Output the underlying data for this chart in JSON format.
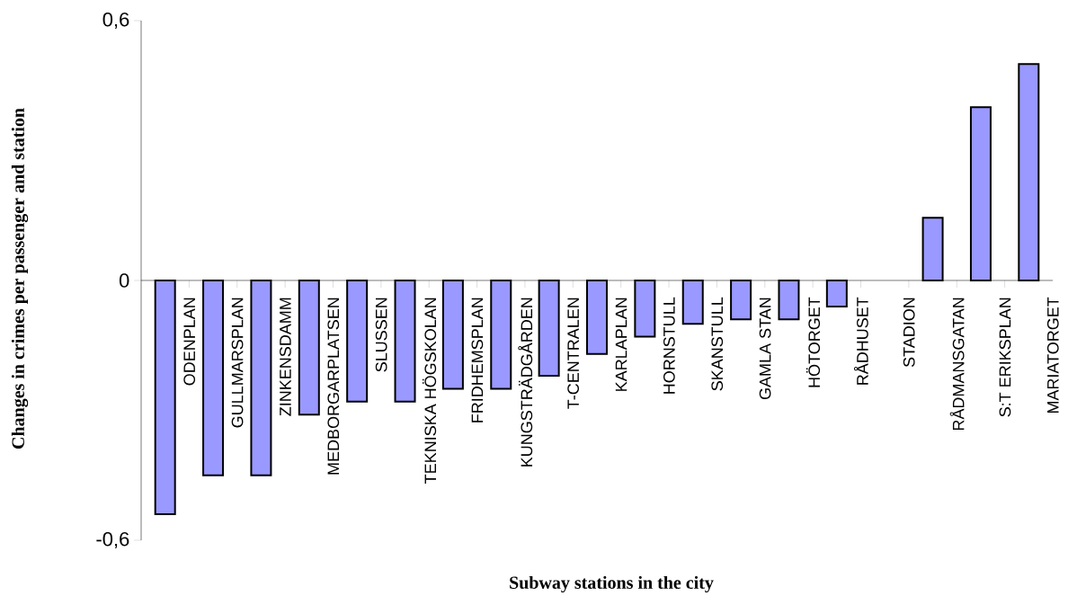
{
  "chart_data": {
    "type": "bar",
    "xlabel": "Subway stations in the city",
    "ylabel": "Changes in crimes per passenger and station",
    "categories": [
      "ODENPLAN",
      "GULLMARSPLAN",
      "ZINKENSDAMM",
      "MEDBORGARPLATSEN",
      "SLUSSEN",
      "TEKNISKA HÖGSKOLAN",
      "FRIDHEMSPLAN",
      "KUNGSTRÄDGÅRDEN",
      "T-CENTRALEN",
      "KARLAPLAN",
      "HORNSTULL",
      "SKANSTULL",
      "GAMLA STAN",
      "HÖTORGET",
      "RÅDHUSET",
      "STADION",
      "RÅDMANSGATAN",
      "S:T ERIKSPLAN",
      "MARIATORGET"
    ],
    "values": [
      -0.54,
      -0.45,
      -0.45,
      -0.31,
      -0.28,
      -0.28,
      -0.25,
      -0.25,
      -0.22,
      -0.17,
      -0.13,
      -0.1,
      -0.09,
      -0.09,
      -0.06,
      0,
      0.145,
      0.4,
      0.5
    ],
    "color": "#9999ff",
    "ylim": [
      -0.6,
      0.6
    ],
    "yticks": [
      {
        "value": -0.6,
        "label": "-0,6"
      },
      0,
      {
        "value": 0.6,
        "label": "0,6"
      }
    ]
  }
}
